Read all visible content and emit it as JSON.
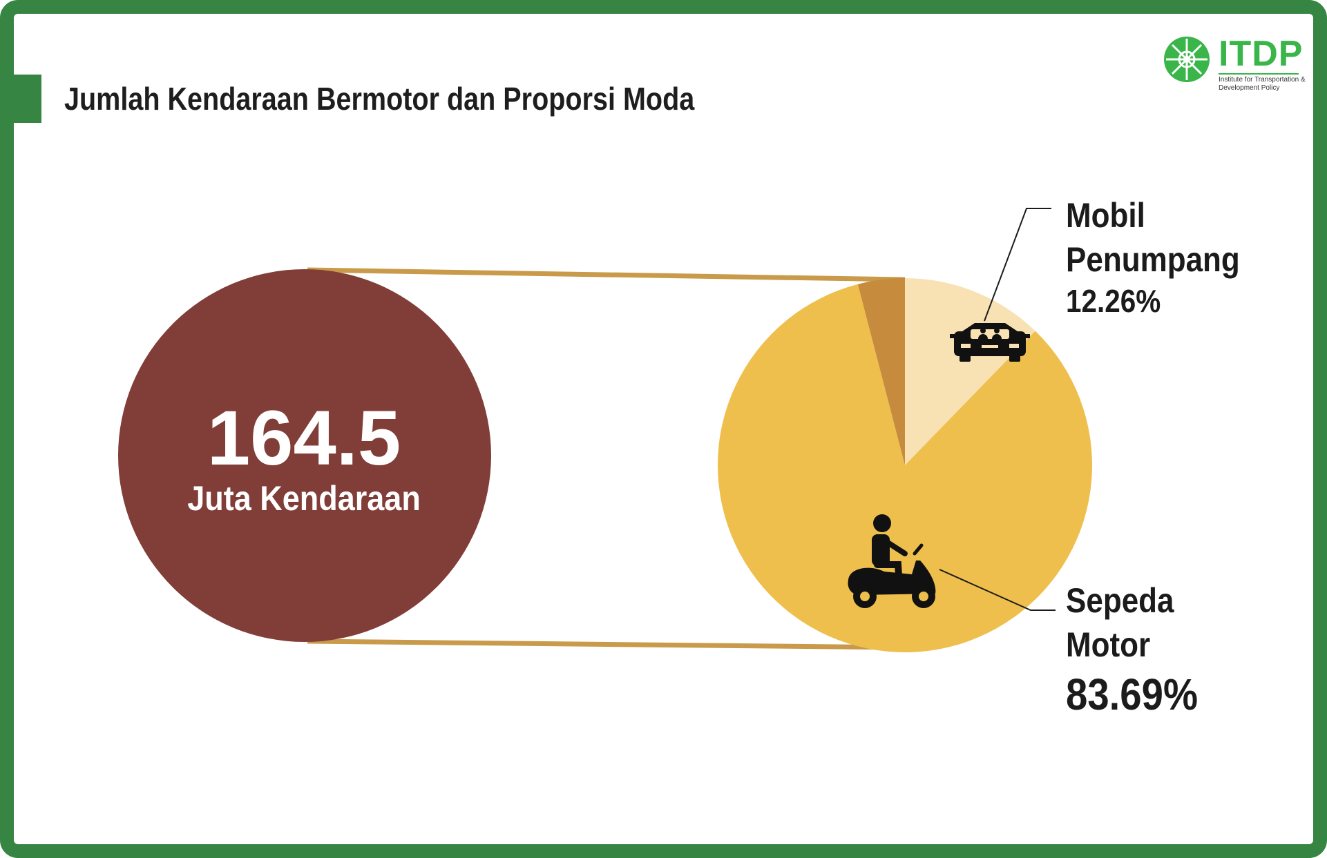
{
  "title": "Jumlah Kendaraan Bermotor dan Proporsi Moda",
  "logo": {
    "name": "ITDP",
    "subtitle": "Institute for Transportation & Development Policy"
  },
  "total": {
    "value": "164.5",
    "unit": "Juta Kendaraan"
  },
  "colors": {
    "frame": "#368542",
    "total_circle": "#813d37",
    "connector": "#c99a4a",
    "motor": "#eebf4c",
    "mobil": "#f8e2b4",
    "other": "#c68b3d",
    "logo": "#39b54a"
  },
  "icons": {
    "mobil": "car-icon",
    "motor": "motorcycle-rider-icon",
    "logo": "itdp-logo-icon"
  },
  "chart_data": {
    "type": "pie",
    "slices": [
      {
        "label": "Mobil Penumpang",
        "value": 12.26,
        "display": "12.26%",
        "color": "#f8e2b4"
      },
      {
        "label": "Sepeda Motor",
        "value": 83.69,
        "display": "83.69%",
        "color": "#eebf4c"
      },
      {
        "label": "",
        "value": 4.05,
        "display": "",
        "color": "#c68b3d"
      }
    ],
    "start_angle_deg": 0,
    "direction": "clockwise"
  },
  "labels": {
    "mobil_line1": "Mobil",
    "mobil_line2": "Penumpang",
    "mobil_pct": "12.26%",
    "motor_line1": "Sepeda",
    "motor_line2": "Motor",
    "motor_pct": "83.69%"
  }
}
